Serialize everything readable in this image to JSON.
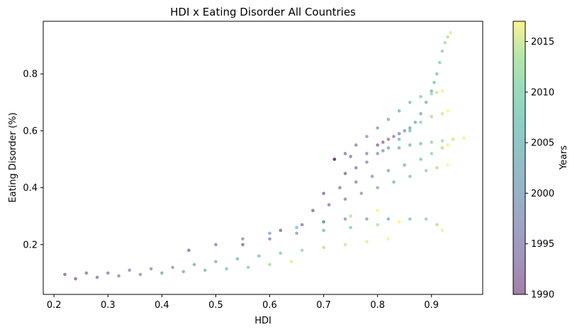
{
  "chart_data": {
    "type": "scatter",
    "title": "HDI x Eating Disorder All Countries",
    "xlabel": "HDI",
    "ylabel": "Eating Disorder (%)",
    "xlim": [
      0.18,
      0.995
    ],
    "ylim": [
      0.025,
      0.985
    ],
    "xticks": [
      0.2,
      0.3,
      0.4,
      0.5,
      0.6,
      0.7,
      0.8,
      0.9
    ],
    "xtick_labels": [
      "0.2",
      "0.3",
      "0.4",
      "0.5",
      "0.6",
      "0.7",
      "0.8",
      "0.9"
    ],
    "yticks": [
      0.2,
      0.4,
      0.6,
      0.8
    ],
    "ytick_labels": [
      "0.2",
      "0.4",
      "0.6",
      "0.8"
    ],
    "grid": false,
    "colormap": "viridis",
    "point_alpha": 0.5,
    "colorbar": {
      "label": "Years",
      "range": [
        1990,
        2017
      ],
      "ticks": [
        1990,
        1995,
        2000,
        2005,
        2010,
        2015
      ],
      "tick_labels": [
        "1990",
        "1995",
        "2000",
        "2005",
        "2010",
        "2015"
      ]
    },
    "series": [
      {
        "x": [
          0.8,
          0.81,
          0.82,
          0.83,
          0.84,
          0.85,
          0.86,
          0.87,
          0.88,
          0.89,
          0.9,
          0.905,
          0.91,
          0.915,
          0.92,
          0.925,
          0.93,
          0.935
        ],
        "y": [
          0.55,
          0.56,
          0.57,
          0.58,
          0.59,
          0.6,
          0.61,
          0.63,
          0.66,
          0.7,
          0.74,
          0.77,
          0.8,
          0.84,
          0.88,
          0.91,
          0.93,
          0.945
        ],
        "years": [
          1990,
          1992,
          1993,
          1995,
          1996,
          1998,
          1999,
          2001,
          2002,
          2004,
          2005,
          2007,
          2008,
          2010,
          2011,
          2013,
          2014,
          2016
        ]
      },
      {
        "x": [
          0.72,
          0.74,
          0.76,
          0.78,
          0.8,
          0.82,
          0.84,
          0.86,
          0.88,
          0.9,
          0.91,
          0.92
        ],
        "y": [
          0.5,
          0.52,
          0.55,
          0.58,
          0.61,
          0.64,
          0.67,
          0.7,
          0.72,
          0.73,
          0.735,
          0.74
        ],
        "years": [
          1990,
          1993,
          1995,
          1998,
          2000,
          2003,
          2005,
          2008,
          2010,
          2013,
          2015,
          2017
        ]
      },
      {
        "x": [
          0.74,
          0.76,
          0.78,
          0.8,
          0.82,
          0.84,
          0.86,
          0.88,
          0.9,
          0.92,
          0.93
        ],
        "y": [
          0.45,
          0.47,
          0.49,
          0.52,
          0.54,
          0.57,
          0.6,
          0.63,
          0.65,
          0.66,
          0.67
        ],
        "years": [
          1990,
          1993,
          1996,
          1999,
          2002,
          2005,
          2008,
          2011,
          2013,
          2015,
          2017
        ]
      },
      {
        "x": [
          0.72,
          0.75,
          0.78,
          0.81,
          0.84,
          0.86,
          0.88,
          0.9,
          0.92,
          0.94,
          0.96
        ],
        "y": [
          0.5,
          0.51,
          0.52,
          0.53,
          0.54,
          0.55,
          0.555,
          0.56,
          0.565,
          0.57,
          0.575
        ],
        "years": [
          1990,
          1993,
          1996,
          1999,
          2002,
          2005,
          2008,
          2011,
          2013,
          2015,
          2017
        ]
      },
      {
        "x": [
          0.7,
          0.73,
          0.76,
          0.79,
          0.82,
          0.85,
          0.88,
          0.9,
          0.92,
          0.93
        ],
        "y": [
          0.38,
          0.4,
          0.42,
          0.44,
          0.46,
          0.48,
          0.5,
          0.52,
          0.54,
          0.55
        ],
        "years": [
          1990,
          1993,
          1996,
          1999,
          2002,
          2005,
          2008,
          2011,
          2014,
          2017
        ]
      },
      {
        "x": [
          0.68,
          0.71,
          0.74,
          0.77,
          0.8,
          0.83,
          0.86,
          0.89,
          0.91,
          0.93
        ],
        "y": [
          0.32,
          0.34,
          0.36,
          0.38,
          0.4,
          0.42,
          0.44,
          0.46,
          0.47,
          0.48
        ],
        "years": [
          1990,
          1993,
          1996,
          1999,
          2002,
          2005,
          2008,
          2011,
          2014,
          2017
        ]
      },
      {
        "x": [
          0.62,
          0.66,
          0.7,
          0.74,
          0.78,
          0.82,
          0.86,
          0.89,
          0.91,
          0.92
        ],
        "y": [
          0.25,
          0.27,
          0.28,
          0.29,
          0.29,
          0.29,
          0.29,
          0.29,
          0.27,
          0.25
        ],
        "years": [
          1990,
          1993,
          1996,
          1999,
          2002,
          2005,
          2008,
          2011,
          2014,
          2017
        ]
      },
      {
        "x": [
          0.22,
          0.26,
          0.3,
          0.34,
          0.38,
          0.42,
          0.46,
          0.5,
          0.54,
          0.58,
          0.62,
          0.66,
          0.7,
          0.74,
          0.78,
          0.82
        ],
        "y": [
          0.095,
          0.1,
          0.1,
          0.11,
          0.115,
          0.12,
          0.13,
          0.14,
          0.15,
          0.16,
          0.17,
          0.18,
          0.19,
          0.2,
          0.21,
          0.22
        ],
        "years": [
          1990,
          1992,
          1994,
          1996,
          1998,
          2000,
          2002,
          2004,
          2006,
          2008,
          2010,
          2012,
          2014,
          2015,
          2016,
          2017
        ]
      },
      {
        "x": [
          0.24,
          0.28,
          0.32,
          0.36,
          0.4,
          0.44,
          0.48,
          0.52,
          0.56,
          0.6,
          0.64
        ],
        "y": [
          0.08,
          0.085,
          0.09,
          0.095,
          0.1,
          0.105,
          0.11,
          0.115,
          0.12,
          0.13,
          0.14
        ],
        "years": [
          1990,
          1993,
          1995,
          1998,
          2000,
          2003,
          2005,
          2008,
          2010,
          2013,
          2016
        ]
      },
      {
        "x": [
          0.45,
          0.5,
          0.55,
          0.6,
          0.65,
          0.7,
          0.75,
          0.8
        ],
        "y": [
          0.18,
          0.2,
          0.22,
          0.24,
          0.26,
          0.28,
          0.3,
          0.32
        ],
        "years": [
          1990,
          1994,
          1998,
          2002,
          2006,
          2010,
          2014,
          2017
        ]
      },
      {
        "x": [
          0.55,
          0.6,
          0.65,
          0.7,
          0.75,
          0.8,
          0.84
        ],
        "y": [
          0.2,
          0.22,
          0.24,
          0.25,
          0.26,
          0.27,
          0.28
        ],
        "years": [
          1990,
          1995,
          2000,
          2005,
          2010,
          2014,
          2017
        ]
      }
    ]
  }
}
